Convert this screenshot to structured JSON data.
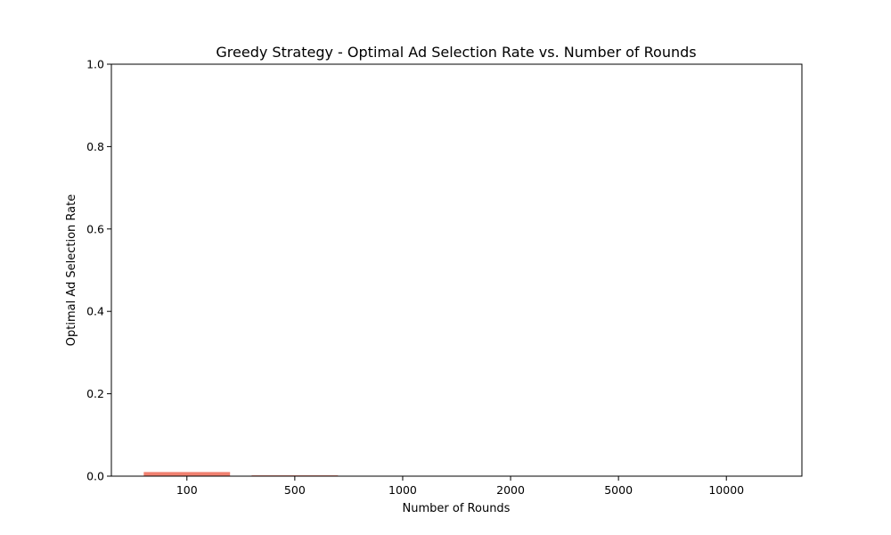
{
  "chart_data": {
    "type": "bar",
    "title": "Greedy Strategy - Optimal Ad Selection Rate vs. Number of Rounds",
    "xlabel": "Number of Rounds",
    "ylabel": "Optimal Ad Selection Rate",
    "categories": [
      "100",
      "500",
      "1000",
      "2000",
      "5000",
      "10000"
    ],
    "values": [
      0.01,
      0.002,
      0.0,
      0.0,
      0.0,
      0.0
    ],
    "ylim": [
      0,
      1
    ],
    "yticks": [
      "0.0",
      "0.2",
      "0.4",
      "0.6",
      "0.8",
      "1.0"
    ],
    "bar_color": "#f08070",
    "grid": false,
    "legend": "none"
  }
}
